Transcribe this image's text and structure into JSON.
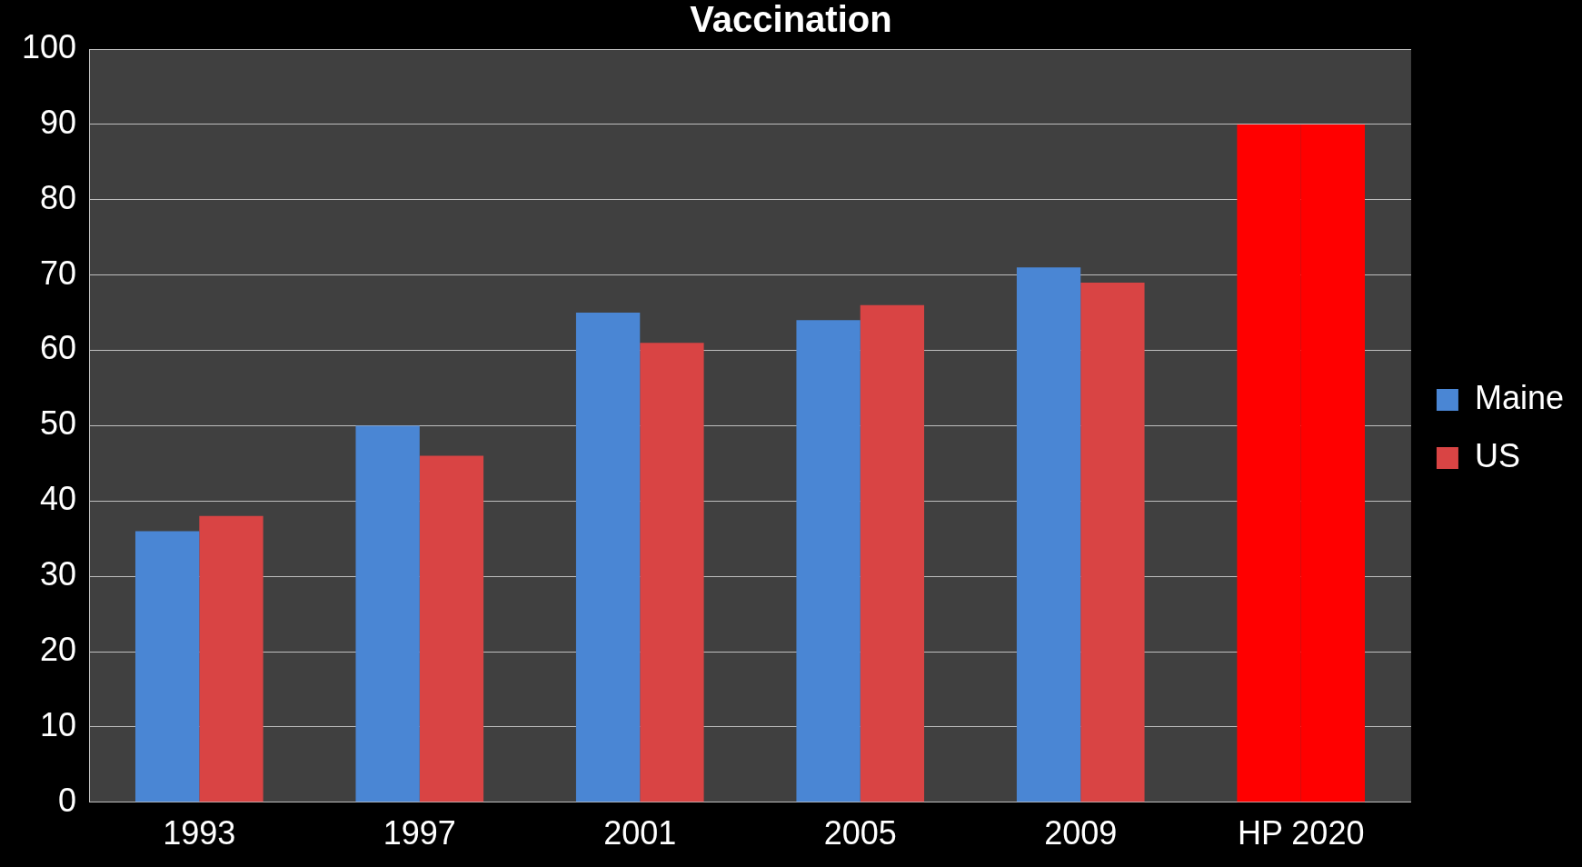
{
  "chart_data": {
    "type": "bar",
    "title": "Vaccination",
    "categories": [
      "1993",
      "1997",
      "2001",
      "2005",
      "2009",
      "HP 2020"
    ],
    "series": [
      {
        "name": "Maine",
        "colors": [
          "#4a86d4",
          "#4a86d4",
          "#4a86d4",
          "#4a86d4",
          "#4a86d4",
          "#ff0000"
        ],
        "values": [
          36,
          50,
          65,
          64,
          71,
          90
        ]
      },
      {
        "name": "US",
        "colors": [
          "#d94444",
          "#d94444",
          "#d94444",
          "#d94444",
          "#d94444",
          "#ff0000"
        ],
        "values": [
          38,
          46,
          61,
          66,
          69,
          90
        ]
      }
    ],
    "ylim": [
      0,
      100
    ],
    "yticks": [
      0,
      10,
      20,
      30,
      40,
      50,
      60,
      70,
      80,
      90,
      100
    ],
    "grid": "y",
    "legend": "right"
  }
}
